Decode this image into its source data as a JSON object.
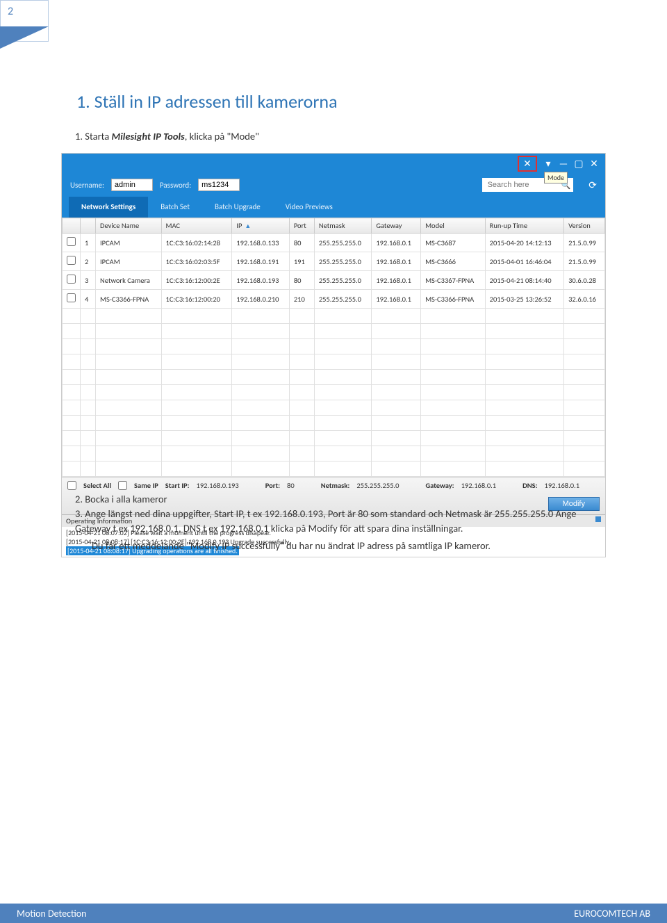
{
  "page": {
    "number": "2"
  },
  "doc": {
    "section_title": "1.  Ställ in IP adressen till kamerorna",
    "step1_prefix": "1.   Starta ",
    "step1_bold": "Milesight IP Tools",
    "step1_suffix": ", klicka på \"Mode\"",
    "step2": "2.   Bocka i alla kameror",
    "step3": "3.   Ange längst ned dina uppgifter, Start IP, t ex 192.168.0.193, Port är 80 som standard och Netmask är 255.255.255.0 Ange Gateway t ex 192.168.0.1, DNS t ex 192.168.0.1 klicka på Modify för att spara dina inställningar.",
    "step3_note": "Du får ett meddelande \"Modify IP successfully\" du har nu ändrat IP adress på samtliga IP kameror."
  },
  "app": {
    "username_label": "Username:",
    "username_value": "admin",
    "password_label": "Password:",
    "password_value": "ms1234",
    "search_placeholder": "Search here",
    "mode_tooltip": "Mode",
    "tabs": {
      "network": "Network Settings",
      "batch_set": "Batch Set",
      "batch_upgrade": "Batch Upgrade",
      "video": "Video Previews"
    },
    "columns": {
      "num": "",
      "chk": "",
      "device": "Device Name",
      "mac": "MAC",
      "ip": "IP",
      "port": "Port",
      "netmask": "Netmask",
      "gateway": "Gateway",
      "model": "Model",
      "runup": "Run-up Time",
      "version": "Version"
    },
    "rows": [
      {
        "n": "1",
        "device": "IPCAM",
        "mac": "1C:C3:16:02:14:28",
        "ip": "192.168.0.133",
        "port": "80",
        "netmask": "255.255.255.0",
        "gateway": "192.168.0.1",
        "model": "MS-C3687",
        "runup": "2015-04-20 14:12:13",
        "version": "21.5.0.99"
      },
      {
        "n": "2",
        "device": "IPCAM",
        "mac": "1C:C3:16:02:03:5F",
        "ip": "192.168.0.191",
        "port": "191",
        "netmask": "255.255.255.0",
        "gateway": "192.168.0.1",
        "model": "MS-C3666",
        "runup": "2015-04-01 16:46:04",
        "version": "21.5.0.99"
      },
      {
        "n": "3",
        "device": "Network Camera",
        "mac": "1C:C3:16:12:00:2E",
        "ip": "192.168.0.193",
        "port": "80",
        "netmask": "255.255.255.0",
        "gateway": "192.168.0.1",
        "model": "MS-C3367-FPNA",
        "runup": "2015-04-21 08:14:40",
        "version": "30.6.0.28"
      },
      {
        "n": "4",
        "device": "MS-C3366-FPNA",
        "mac": "1C:C3:16:12:00:20",
        "ip": "192.168.0.210",
        "port": "210",
        "netmask": "255.255.255.0",
        "gateway": "192.168.0.1",
        "model": "MS-C3366-FPNA",
        "runup": "2015-03-25 13:26:52",
        "version": "32.6.0.16"
      }
    ],
    "bottom": {
      "select_all": "Select All",
      "same_ip": "Same IP",
      "start_ip_label": "Start IP:",
      "start_ip": "192.168.0.193",
      "port_label": "Port:",
      "port": "80",
      "netmask_label": "Netmask:",
      "netmask": "255.255.255.0",
      "gateway_label": "Gateway:",
      "gateway": "192.168.0.1",
      "dns_label": "DNS:",
      "dns": "192.168.0.1",
      "modify": "Modify"
    },
    "opinfo": {
      "header": "Operating Information",
      "lines": [
        "[2015-04-21 08:07:02] Please wait a moment until the progress disapear.",
        "[2015-04-21 08:08:17] [1C:C3:16:12:00:2E] 192.168.0.193 Upgrade successfully."
      ],
      "hl_line": "[2015-04-21 08:08:17] Upgrading operations are all finished."
    }
  },
  "footer": {
    "left": "Motion Detection",
    "right": "EUROCOMTECH AB"
  }
}
